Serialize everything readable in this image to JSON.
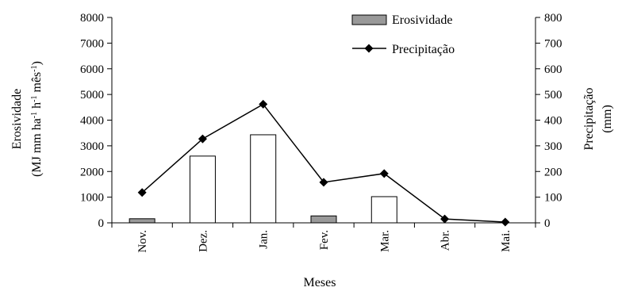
{
  "chart_data": {
    "type": "bar",
    "xlabel": "Meses",
    "categories": [
      "Nov.",
      "Dez.",
      "Jan.",
      "Fev.",
      "Mar.",
      "Abr.",
      "Mai."
    ],
    "ylabel_left": {
      "line1": "Erosividade",
      "line2_parts": [
        "(MJ mm ha",
        "-1",
        " h",
        "-1",
        " mês",
        "-1",
        ")"
      ]
    },
    "ylabel_right": {
      "line1": "Precipitação",
      "line2": "(mm)"
    },
    "ylim_left": [
      0,
      8000
    ],
    "ylim_right": [
      0,
      800
    ],
    "yticks_left": [
      0,
      1000,
      2000,
      3000,
      4000,
      5000,
      6000,
      7000,
      8000
    ],
    "yticks_right": [
      0,
      100,
      200,
      300,
      400,
      500,
      600,
      700,
      800
    ],
    "grid": false,
    "legend_position": "top-right",
    "series": [
      {
        "name": "Erosividade",
        "type": "bar",
        "axis": "left",
        "values": [
          160,
          2600,
          3430,
          270,
          1020,
          0,
          0
        ],
        "bar_colors": [
          "#999999",
          "#ffffff",
          "#ffffff",
          "#999999",
          "#ffffff",
          "#ffffff",
          "#ffffff"
        ],
        "legend_color": "#999999"
      },
      {
        "name": "Precipitação",
        "type": "line",
        "marker": "diamond",
        "axis": "right",
        "values": [
          118,
          327,
          462,
          158,
          192,
          15,
          3
        ],
        "color": "#000000"
      }
    ]
  }
}
